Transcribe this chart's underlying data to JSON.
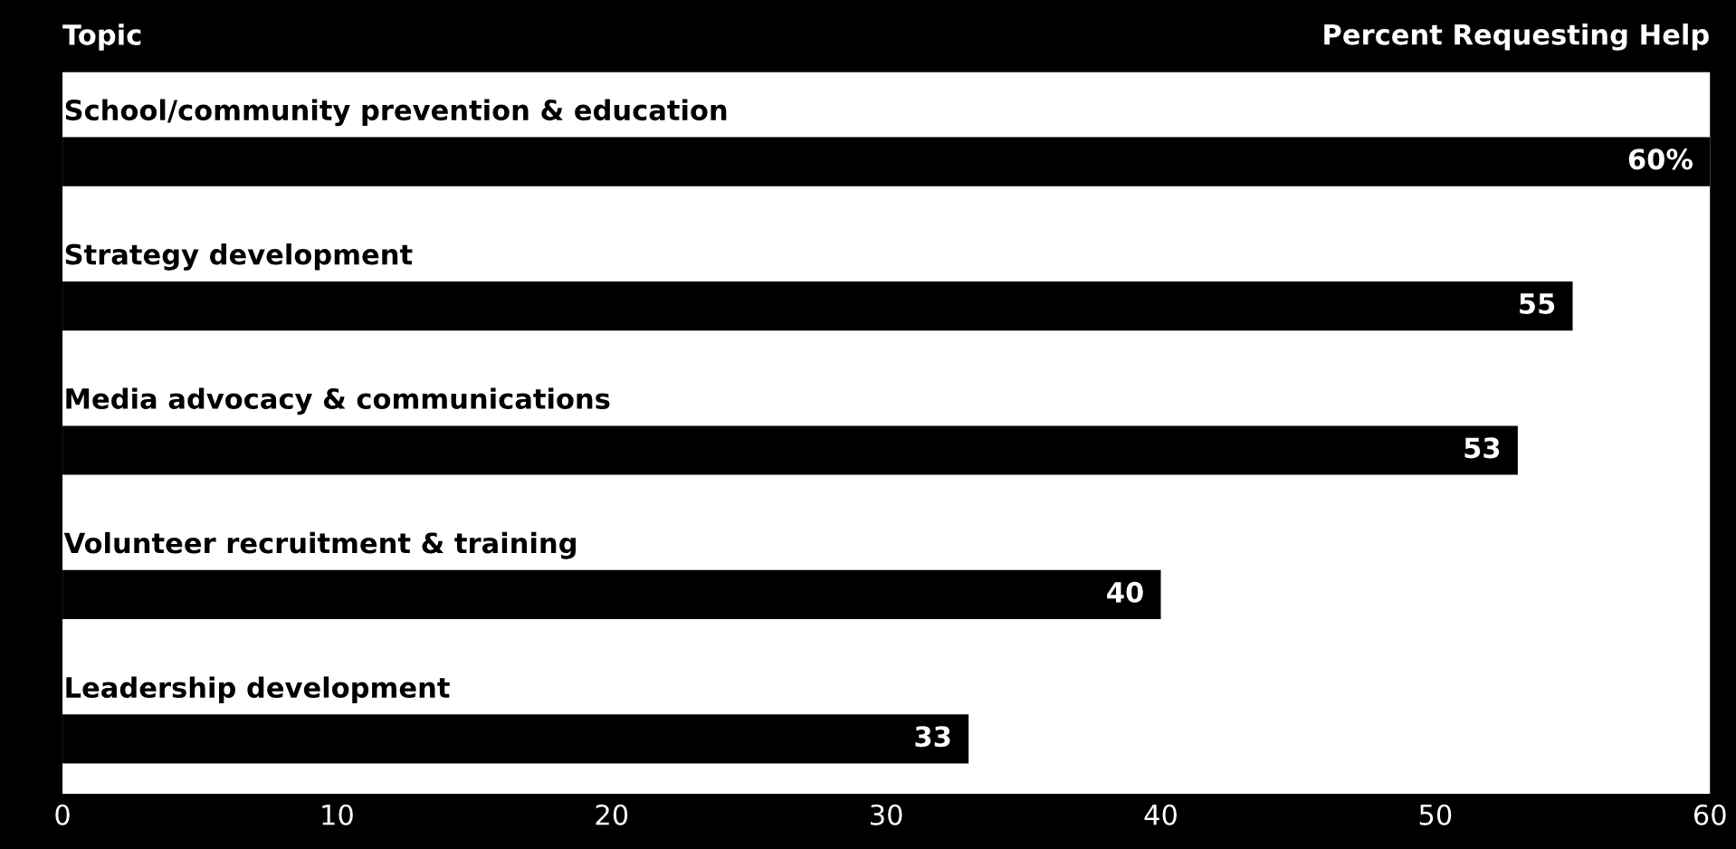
{
  "chart_data": {
    "type": "bar",
    "orientation": "horizontal",
    "xlabel": "Percent Requesting Help",
    "ylabel": "Topic",
    "categories": [
      "School/community prevention & education",
      "Strategy development",
      "Media advocacy & communications",
      "Volunteer recruitment & training",
      "Leadership development"
    ],
    "values": [
      60,
      55,
      53,
      40,
      33
    ],
    "value_labels": [
      "60%",
      "55",
      "53",
      "40",
      "33"
    ],
    "color": "#000000",
    "xlim": [
      0,
      60
    ],
    "xticks": [
      0,
      10,
      20,
      30,
      40,
      50,
      60
    ],
    "grid": false
  }
}
